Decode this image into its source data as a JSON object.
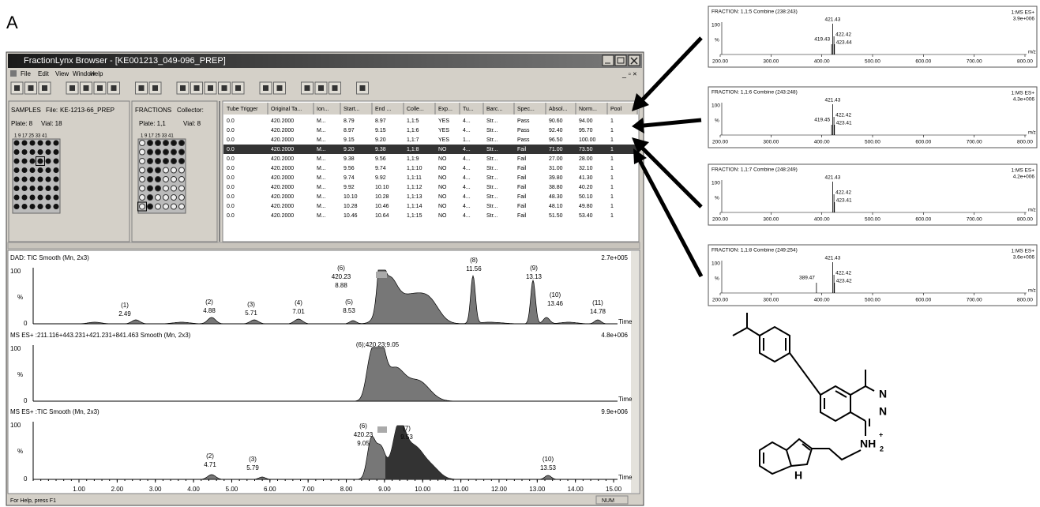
{
  "figure_label": "A",
  "window": {
    "title": "FractionLynx Browser - [KE001213_049-096_PREP]",
    "menu": [
      "File",
      "Edit",
      "View",
      "Window",
      "Help"
    ]
  },
  "samples": {
    "heading": "SAMPLES",
    "file_label": "File:",
    "file": "KE-1213-66_PREP",
    "plate": "Plate: 8",
    "vial": "Vial: 18",
    "columns": "1  9  17 25 33 41"
  },
  "fractions": {
    "heading": "FRACTIONS",
    "collector": "Collector:",
    "plate": "Plate: 1,1",
    "vial": "Vial: 8",
    "columns": "1  9  17 25 33 41"
  },
  "table": {
    "headers": [
      "Tube Trigger",
      "Original Ta...",
      "Ion...",
      "Start...",
      "End ...",
      "Colle...",
      "Exp...",
      "Tu...",
      "Barc...",
      "Spec...",
      "Absol...",
      "Norm...",
      "Pool"
    ],
    "rows": [
      [
        "0.0",
        "420.2000",
        "M...",
        "8.79",
        "8.97",
        "1,1:5",
        "YES",
        "4...",
        "Str...",
        "Pass",
        "90.60",
        "94.00",
        "1"
      ],
      [
        "0.0",
        "420.2000",
        "M...",
        "8.97",
        "9.15",
        "1,1:6",
        "YES",
        "4...",
        "Str...",
        "Pass",
        "92.40",
        "95.70",
        "1"
      ],
      [
        "0.0",
        "420.2000",
        "M...",
        "9.15",
        "9.20",
        "1,1:7",
        "YES",
        "1...",
        "Str...",
        "Pass",
        "96.50",
        "100.00",
        "1"
      ],
      [
        "0.0",
        "420.2000",
        "M...",
        "9.20",
        "9.38",
        "1,1:8",
        "NO",
        "4...",
        "Str...",
        "Fail",
        "71.00",
        "73.50",
        "1"
      ],
      [
        "0.0",
        "420.2000",
        "M...",
        "9.38",
        "9.56",
        "1,1:9",
        "NO",
        "4...",
        "Str...",
        "Fail",
        "27.00",
        "28.00",
        "1"
      ],
      [
        "0.0",
        "420.2000",
        "M...",
        "9.56",
        "9.74",
        "1,1:10",
        "NO",
        "4...",
        "Str...",
        "Fail",
        "31.00",
        "32.10",
        "1"
      ],
      [
        "0.0",
        "420.2000",
        "M...",
        "9.74",
        "9.92",
        "1,1:11",
        "NO",
        "4...",
        "Str...",
        "Fail",
        "39.80",
        "41.30",
        "1"
      ],
      [
        "0.0",
        "420.2000",
        "M...",
        "9.92",
        "10.10",
        "1,1:12",
        "NO",
        "4...",
        "Str...",
        "Fail",
        "38.80",
        "40.20",
        "1"
      ],
      [
        "0.0",
        "420.2000",
        "M...",
        "10.10",
        "10.28",
        "1,1:13",
        "NO",
        "4...",
        "Str...",
        "Fail",
        "48.30",
        "50.10",
        "1"
      ],
      [
        "0.0",
        "420.2000",
        "M...",
        "10.28",
        "10.46",
        "1,1:14",
        "NO",
        "4...",
        "Str...",
        "Fail",
        "48.10",
        "49.80",
        "1"
      ],
      [
        "0.0",
        "420.2000",
        "M...",
        "10.46",
        "10.64",
        "1,1:15",
        "NO",
        "4...",
        "Str...",
        "Fail",
        "51.50",
        "53.40",
        "1"
      ]
    ]
  },
  "chromatograms": {
    "traces": [
      {
        "title": "DAD: TIC Smooth (Mn, 2x3)",
        "scale": "2.7e+005",
        "peaks": [
          {
            "lines": [
              "(1)",
              "2.49"
            ]
          },
          {
            "lines": [
              "(2)",
              "4.88"
            ]
          },
          {
            "lines": [
              "(3)",
              "5.71"
            ]
          },
          {
            "lines": [
              "(4)",
              "7.01"
            ]
          },
          {
            "lines": [
              "(5)",
              "8.53"
            ]
          },
          {
            "lines": [
              "(6)",
              "420.23",
              "8.88"
            ]
          },
          {
            "lines": [
              "(8)",
              "11.56"
            ]
          },
          {
            "lines": [
              "(9)",
              "13.13"
            ]
          },
          {
            "lines": [
              "(10)",
              "13.46"
            ]
          },
          {
            "lines": [
              "(11)",
              "14.78"
            ]
          }
        ]
      },
      {
        "title": "MS ES+ :211.116+443.231+421.231+841.463 Smooth (Mn, 2x3)",
        "scale": "4.8e+006",
        "peaks": [
          {
            "lines": [
              "(6);420.23;9.05"
            ]
          }
        ]
      },
      {
        "title": "MS ES+ :TIC Smooth (Mn, 2x3)",
        "scale": "9.9e+006",
        "peaks": [
          {
            "lines": [
              "(2)",
              "4.71"
            ]
          },
          {
            "lines": [
              "(3)",
              "5.79"
            ]
          },
          {
            "lines": [
              "(6)",
              "420.23",
              "9.05"
            ]
          },
          {
            "lines": [
              "(7)",
              "9.53"
            ]
          },
          {
            "lines": [
              "(10)",
              "13.53"
            ]
          }
        ]
      }
    ],
    "y_top": "100",
    "y_pct": "%",
    "y_zero": "0",
    "x_ticks": [
      "1.00",
      "2.00",
      "3.00",
      "4.00",
      "5.00",
      "6.00",
      "7.00",
      "8.00",
      "9.00",
      "10.00",
      "11.00",
      "12.00",
      "13.00",
      "14.00",
      "15.00"
    ],
    "x_label": "Time"
  },
  "status": {
    "help": "For Help, press F1",
    "num": "NUM"
  },
  "spectra": {
    "y_top": "100",
    "y_pct": "%",
    "x_label": "m/z",
    "x_ticks": [
      "200.00",
      "300.00",
      "400.00",
      "500.00",
      "600.00",
      "700.00",
      "800.00"
    ],
    "panels": [
      {
        "title": "FRACTION: 1,1:5 Combine (238:243)",
        "mode": "1:MS ES+",
        "scale": "3.9e+006",
        "peaks": [
          "421.43",
          "422.42",
          "419.43",
          "423.44"
        ]
      },
      {
        "title": "FRACTION: 1,1:6 Combine (243:248)",
        "mode": "1:MS ES+",
        "scale": "4.3e+006",
        "peaks": [
          "421.43",
          "422.42",
          "419.45",
          "423.41"
        ]
      },
      {
        "title": "FRACTION: 1,1:7 Combine (248:249)",
        "mode": "1:MS ES+",
        "scale": "4.2e+006",
        "peaks": [
          "421.43",
          "422.42",
          "423.41"
        ]
      },
      {
        "title": "FRACTION: 1,1:8 Combine (249:254)",
        "mode": "1:MS ES+",
        "scale": "3.6e+006",
        "peaks": [
          "421.43",
          "389.47",
          "422.42",
          "423.42"
        ]
      }
    ]
  },
  "molecule": {
    "n1": "N",
    "n2": "N",
    "nh": "NH",
    "nh_sub": "2",
    "nh_sup": "+",
    "indole_h": "H"
  }
}
